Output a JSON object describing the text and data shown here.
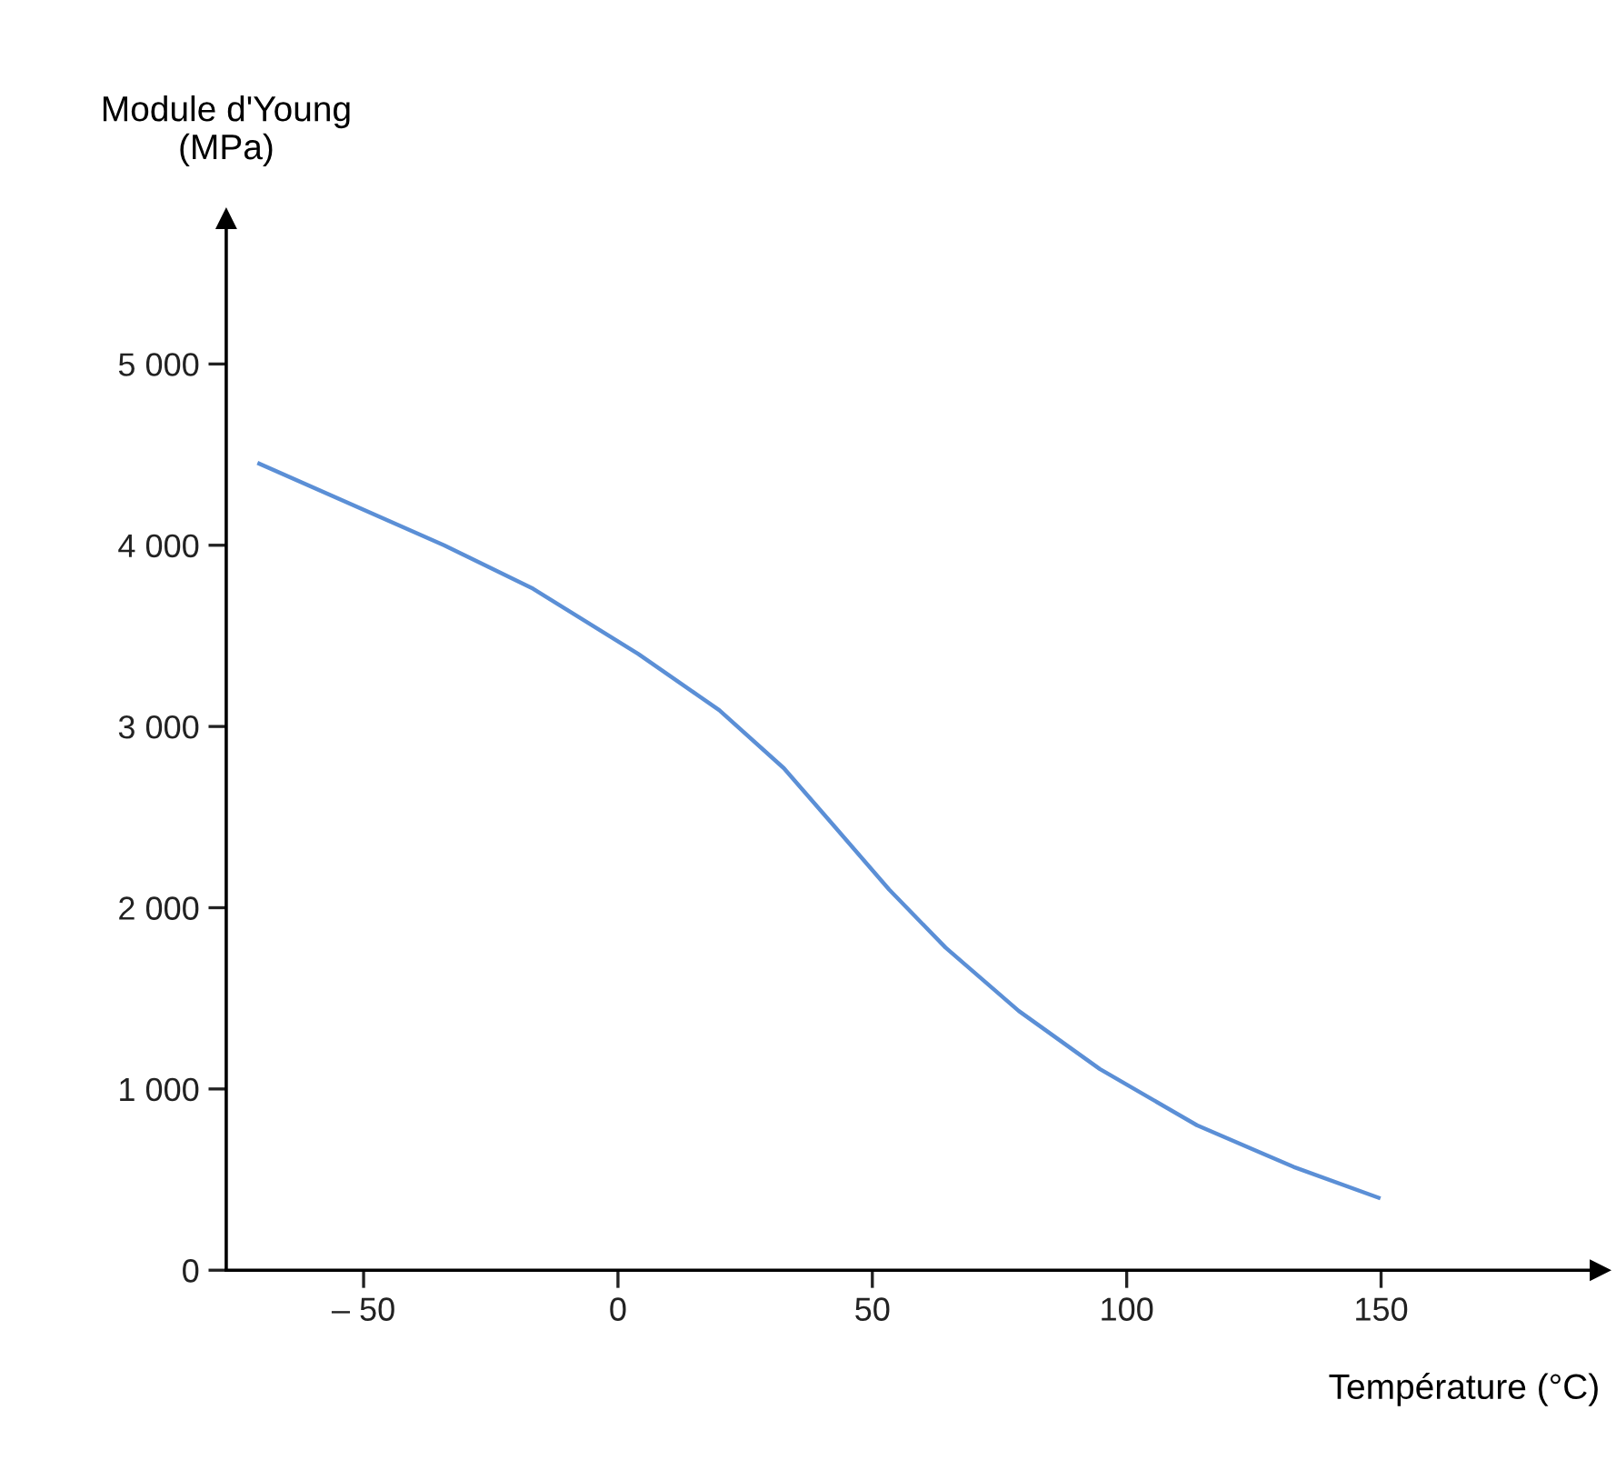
{
  "chart_data": {
    "type": "line",
    "xlabel": "Température (°C)",
    "ylabel": "Module d'Young\n(MPa)",
    "x": [
      -70.5,
      -34.2,
      -16.7,
      4.0,
      19.9,
      32.6,
      42.2,
      53.3,
      64.4,
      78.8,
      94.7,
      113.8,
      132.8,
      149.5
    ],
    "series": [
      {
        "color": "#5b8fd6",
        "values": [
          4450,
          4000,
          3760,
          3400,
          3090,
          2770,
          2460,
          2100,
          1780,
          1430,
          1110,
          800,
          570,
          400
        ]
      }
    ],
    "xlim": [
      -77,
      193
    ],
    "ylim": [
      0,
      5800
    ],
    "xticks": [
      {
        "value": -50,
        "label": "– 50"
      },
      0,
      50,
      100,
      150
    ],
    "yticks": [
      0,
      {
        "value": 1000,
        "label": "1 000"
      },
      {
        "value": 2000,
        "label": "2 000"
      },
      {
        "value": 3000,
        "label": "3 000"
      },
      {
        "value": 4000,
        "label": "4 000"
      },
      {
        "value": 5000,
        "label": "5 000"
      }
    ],
    "grid": false,
    "marker": "none",
    "line_style": "solid"
  }
}
